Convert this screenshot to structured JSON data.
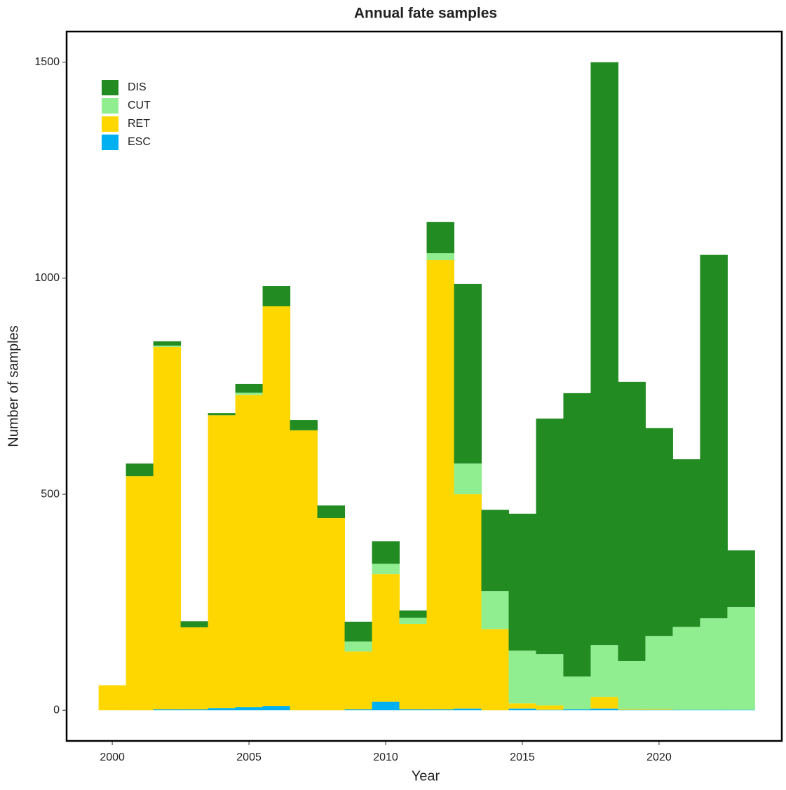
{
  "chart_data": {
    "type": "stacked_bar",
    "title": "Annual fate samples",
    "x_label": "Year",
    "y_label": "Number of samples",
    "x": [
      2000,
      2001,
      2002,
      2003,
      2004,
      2005,
      2006,
      2007,
      2008,
      2009,
      2010,
      2011,
      2012,
      2013,
      2014,
      2015,
      2016,
      2017,
      2018,
      2019,
      2020,
      2021,
      2022,
      2023
    ],
    "series": [
      {
        "name": "DIS",
        "color": "#228B22",
        "values": [
          0,
          29,
          10,
          14,
          5,
          20,
          47,
          24,
          29,
          46,
          52,
          17,
          72,
          416,
          188,
          317,
          545,
          656,
          1349,
          646,
          481,
          388,
          841,
          131
        ]
      },
      {
        "name": "CUT",
        "color": "#90EE90",
        "values": [
          0,
          0,
          3,
          0,
          0,
          5,
          0,
          0,
          0,
          23,
          24,
          14,
          16,
          71,
          88,
          122,
          119,
          76,
          120,
          111,
          169,
          192,
          212,
          238
        ]
      },
      {
        "name": "RET",
        "color": "#FFD700",
        "values": [
          58,
          542,
          839,
          190,
          678,
          723,
          925,
          648,
          445,
          134,
          295,
          198,
          1040,
          496,
          188,
          12,
          10,
          0,
          27,
          2,
          2,
          0,
          0,
          0
        ]
      },
      {
        "name": "ESC",
        "color": "#00B0F0",
        "values": [
          0,
          0,
          2,
          2,
          5,
          7,
          10,
          0,
          0,
          2,
          20,
          2,
          2,
          4,
          0,
          4,
          1,
          2,
          4,
          1,
          1,
          1,
          1,
          1
        ]
      }
    ],
    "xlim": [
      1998.33,
      2024.49
    ],
    "xticks": [
      2000,
      2005,
      2010,
      2015,
      2020
    ],
    "ylim": [
      -71,
      1571
    ],
    "yticks": [
      0,
      500,
      1000,
      1500
    ],
    "legend": "top-left"
  }
}
